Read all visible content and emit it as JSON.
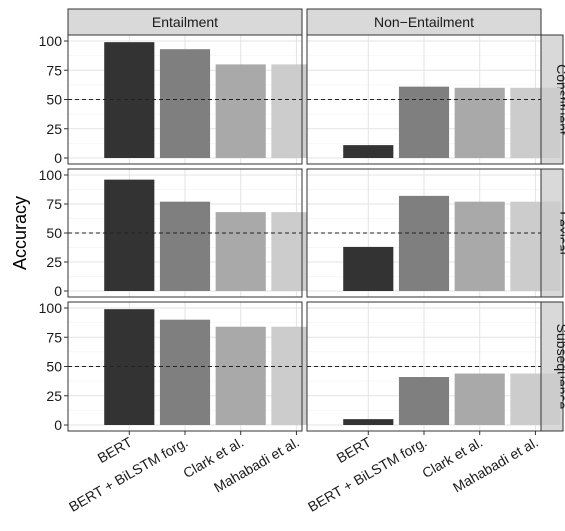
{
  "chart_data": {
    "type": "bar",
    "ylabel": "Accuracy",
    "xlabel": "",
    "ylim": [
      0,
      100
    ],
    "yticks": [
      0,
      25,
      50,
      75,
      100
    ],
    "reference_line": 50,
    "grid": true,
    "columns": [
      "Entailment",
      "Non−Entailment"
    ],
    "rows": [
      "Constituent",
      "Lexical",
      "Subsequence"
    ],
    "categories": [
      "BERT",
      "BERT + BiLSTM forg.",
      "Clark et al.",
      "Mahabadi et al."
    ],
    "bar_colors": [
      "#333333",
      "#7f7f7f",
      "#a9a9a9",
      "#cccccc"
    ],
    "panels": [
      {
        "column": "Entailment",
        "row": "Constituent",
        "values": [
          99,
          93,
          80,
          80
        ]
      },
      {
        "column": "Non−Entailment",
        "row": "Constituent",
        "values": [
          11,
          61,
          60,
          60
        ]
      },
      {
        "column": "Entailment",
        "row": "Lexical",
        "values": [
          96,
          77,
          68,
          68
        ]
      },
      {
        "column": "Non−Entailment",
        "row": "Lexical",
        "values": [
          38,
          82,
          77,
          77
        ]
      },
      {
        "column": "Entailment",
        "row": "Subsequence",
        "values": [
          99,
          90,
          84,
          84
        ]
      },
      {
        "column": "Non−Entailment",
        "row": "Subsequence",
        "values": [
          5,
          41,
          44,
          44
        ]
      }
    ]
  }
}
